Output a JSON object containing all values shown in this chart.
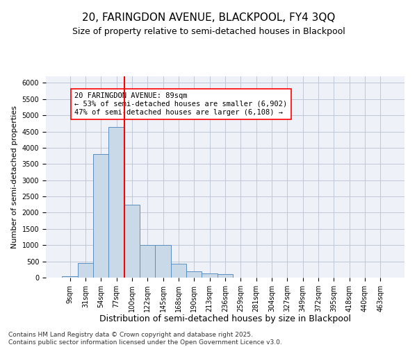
{
  "title1": "20, FARINGDON AVENUE, BLACKPOOL, FY4 3QQ",
  "title2": "Size of property relative to semi-detached houses in Blackpool",
  "xlabel": "Distribution of semi-detached houses by size in Blackpool",
  "ylabel": "Number of semi-detached properties",
  "bins": [
    "9sqm",
    "31sqm",
    "54sqm",
    "77sqm",
    "100sqm",
    "122sqm",
    "145sqm",
    "168sqm",
    "190sqm",
    "213sqm",
    "236sqm",
    "259sqm",
    "281sqm",
    "304sqm",
    "327sqm",
    "349sqm",
    "372sqm",
    "395sqm",
    "418sqm",
    "440sqm",
    "463sqm"
  ],
  "bar_values": [
    50,
    450,
    3800,
    4650,
    2250,
    1000,
    1000,
    420,
    200,
    120,
    100,
    0,
    0,
    0,
    0,
    0,
    0,
    0,
    0,
    0,
    0
  ],
  "bar_color": "#c9d9e8",
  "bar_edge_color": "#5a8fc0",
  "grid_color": "#c0c8d8",
  "bg_color": "#eef2f8",
  "vline_color": "red",
  "annotation_text": "20 FARINGDON AVENUE: 89sqm\n← 53% of semi-detached houses are smaller (6,902)\n47% of semi-detached houses are larger (6,108) →",
  "ylim": [
    0,
    6200
  ],
  "yticks": [
    0,
    500,
    1000,
    1500,
    2000,
    2500,
    3000,
    3500,
    4000,
    4500,
    5000,
    5500,
    6000
  ],
  "footer": "Contains HM Land Registry data © Crown copyright and database right 2025.\nContains public sector information licensed under the Open Government Licence v3.0.",
  "title1_fontsize": 11,
  "title2_fontsize": 9,
  "xlabel_fontsize": 9,
  "ylabel_fontsize": 8,
  "tick_fontsize": 7,
  "annotation_fontsize": 7.5,
  "footer_fontsize": 6.5
}
